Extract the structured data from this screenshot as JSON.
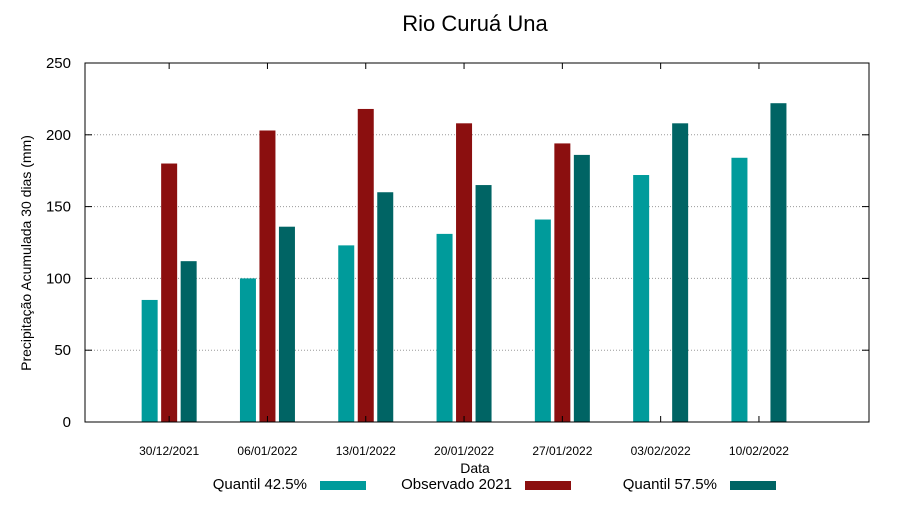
{
  "chart_data": {
    "type": "bar",
    "title": "Rio Curuá Una",
    "xlabel": "Data",
    "ylabel": "Precipitação Acumulada 30 dias (mm)",
    "ylim": [
      0,
      250
    ],
    "yticks": [
      0,
      50,
      100,
      150,
      200,
      250
    ],
    "grid": "horizontal dotted",
    "legend_position": "bottom",
    "categories": [
      "30/12/2021",
      "06/01/2022",
      "13/01/2022",
      "20/01/2022",
      "27/01/2022",
      "03/02/2022",
      "10/02/2022"
    ],
    "series": [
      {
        "name": "Quantil 42.5%",
        "color": "#009b9b",
        "values": [
          85,
          100,
          123,
          131,
          141,
          172,
          184
        ]
      },
      {
        "name": "Observado 2021",
        "color": "#8b0f0f",
        "values": [
          180,
          203,
          218,
          208,
          194,
          null,
          null
        ]
      },
      {
        "name": "Quantil 57.5%",
        "color": "#006464",
        "values": [
          112,
          136,
          160,
          165,
          186,
          208,
          222
        ]
      }
    ]
  }
}
